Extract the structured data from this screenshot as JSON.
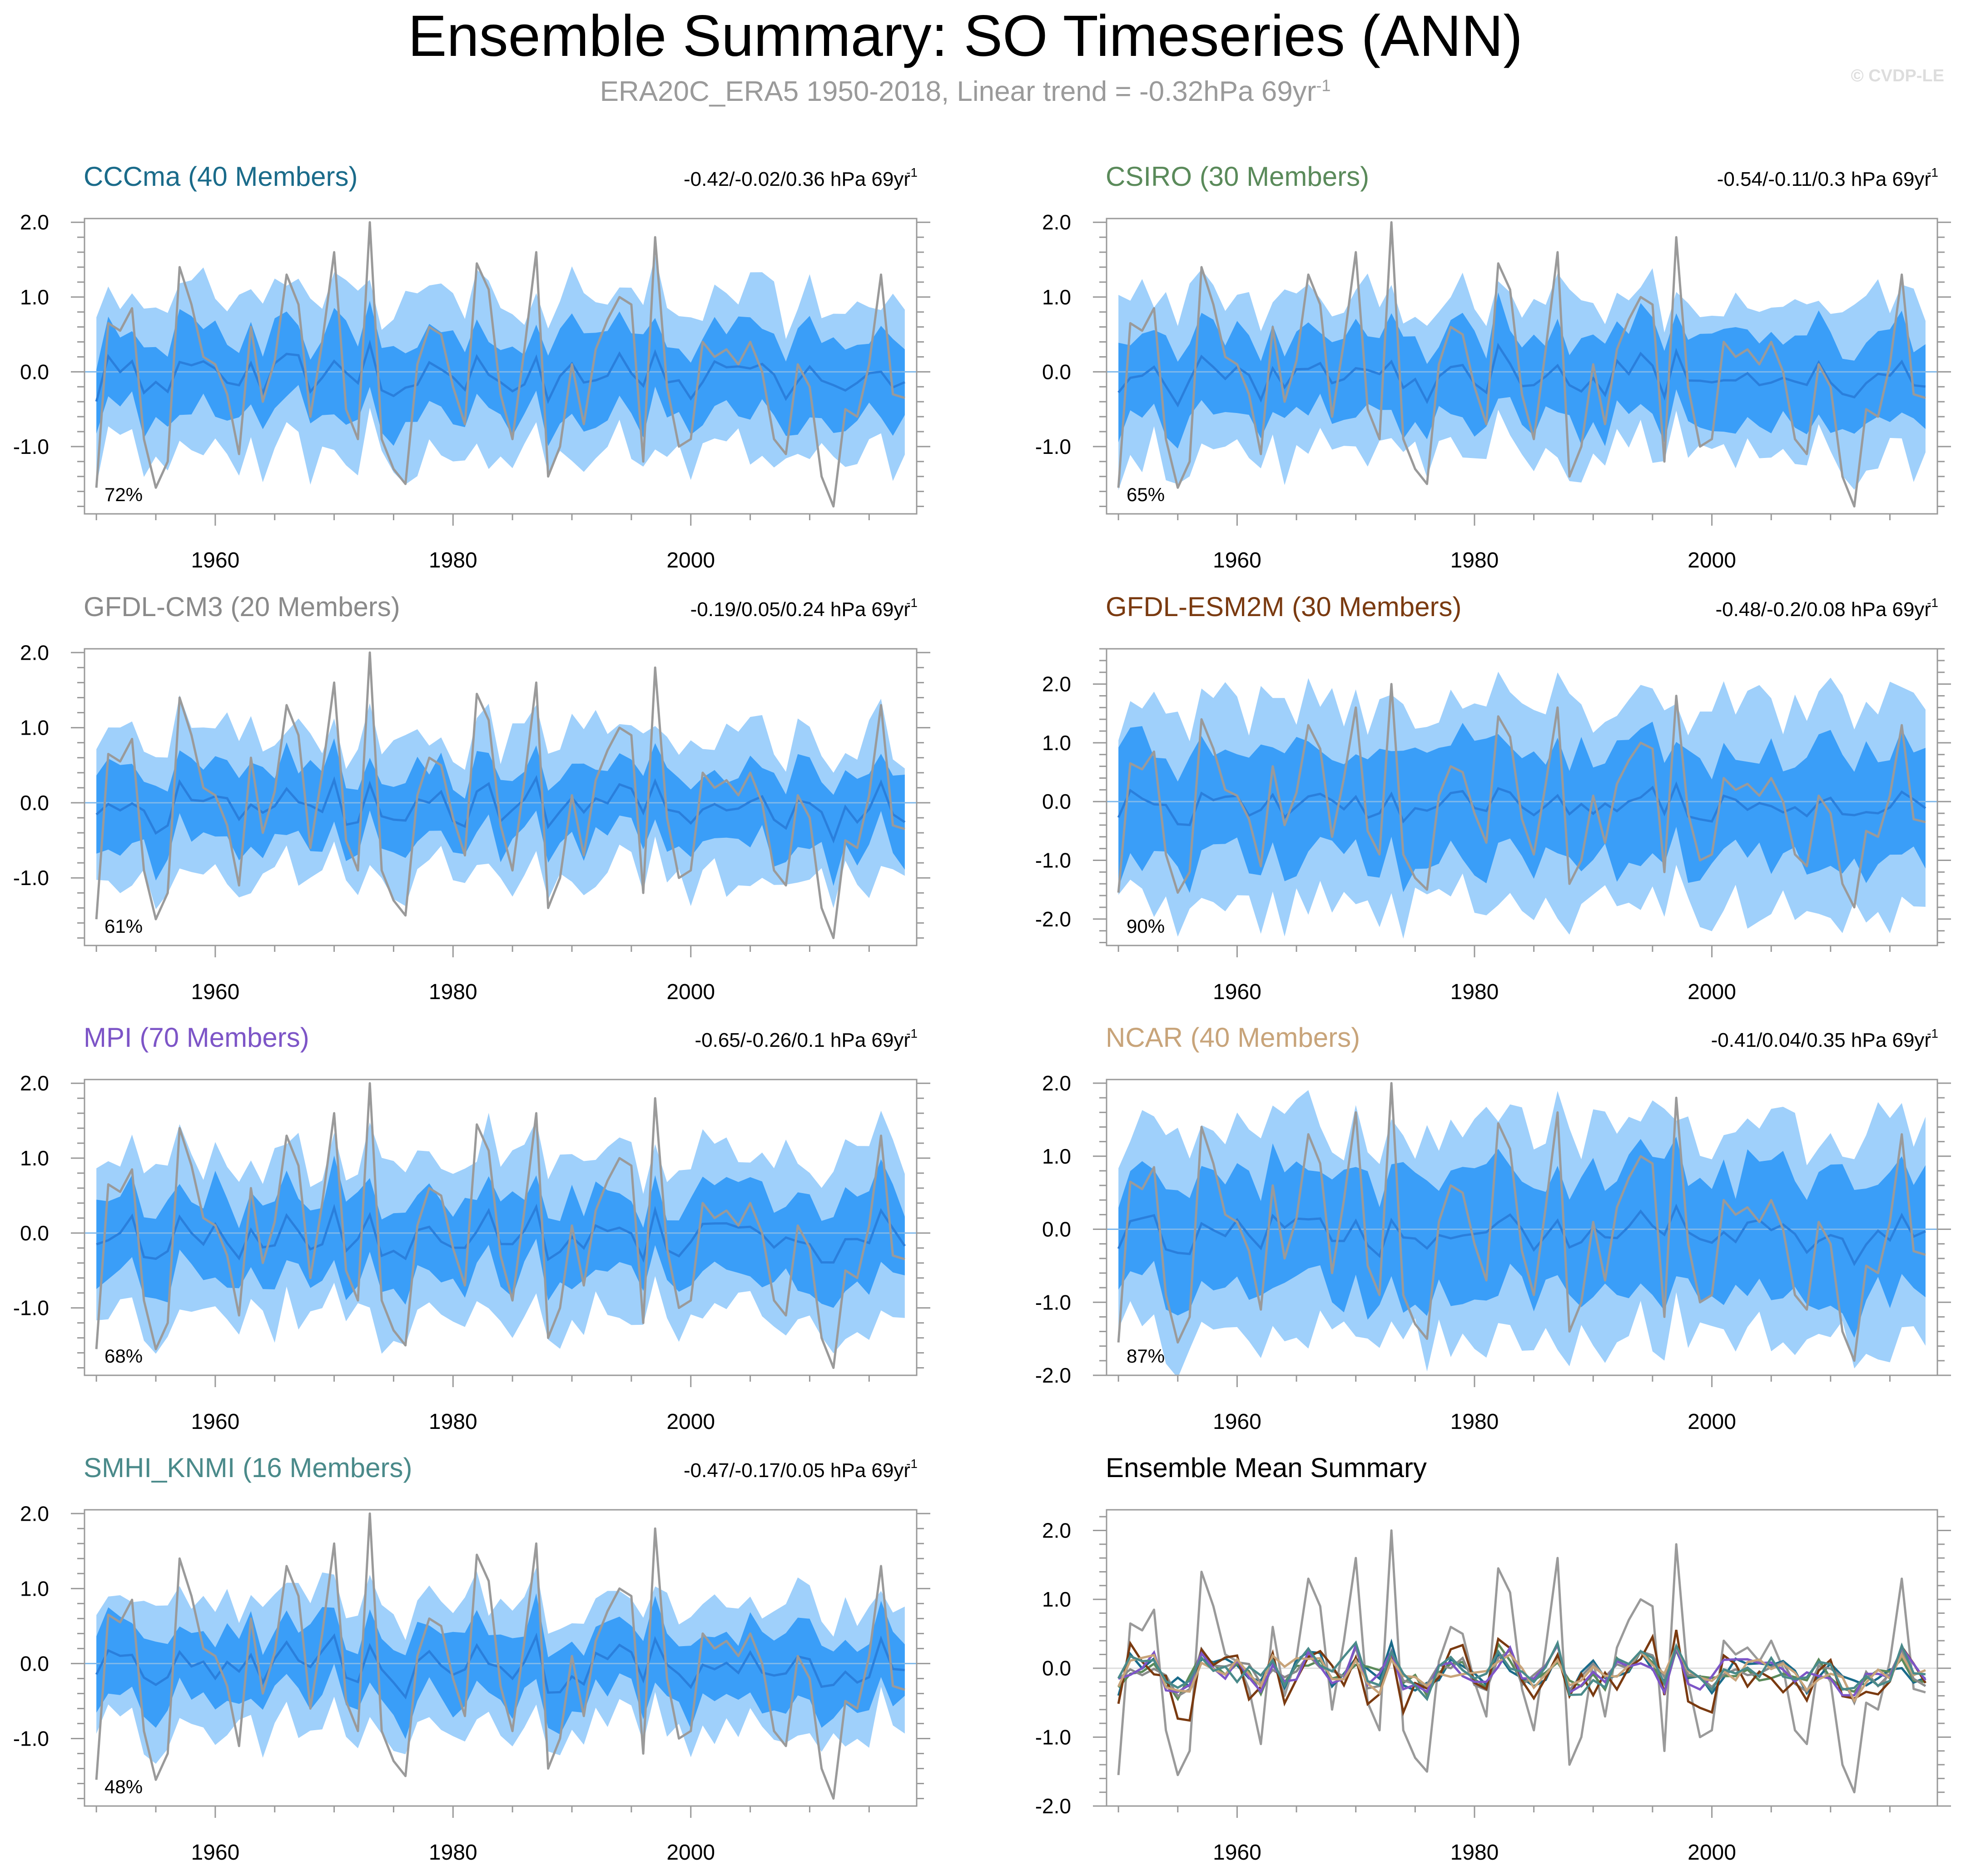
{
  "header": {
    "title": "Ensemble Summary: SO Timeseries (ANN)",
    "subtitle_main": "ERA20C_ERA5 1950-2018, Linear trend = -0.32hPa 69yr",
    "subtitle_sup": "-1",
    "watermark": "© CVDP-LE"
  },
  "colors": {
    "band_outer": "#9fd0fb",
    "band_inner": "#3a9ef8",
    "ensemble_mean": "#2a7fdc",
    "observations": "#9a9a9a",
    "axis": "#9a9a9a"
  },
  "chart_data": [
    {
      "type": "line",
      "id": "CCCma",
      "title": "CCCma (40 Members)",
      "title_color": "#1a6b8a",
      "trend_text": "-0.42/-0.02/0.36 hPa 69yr",
      "trend_sup": "-1",
      "pct_label": "72%",
      "ylim": [
        -1.9,
        2.05
      ],
      "yticks": [
        2.0,
        1.0,
        0.0,
        -1.0
      ],
      "ytick_labels": [
        "2.0",
        "1.0",
        "0.0",
        "-1.0"
      ],
      "xlim": [
        1949,
        2019
      ],
      "xticks": [
        1960,
        1980,
        2000
      ],
      "xtick_labels": [
        "1960",
        "1980",
        "2000"
      ],
      "band_outer": 1.05,
      "band_inner": 0.55,
      "seed": 3
    },
    {
      "type": "line",
      "id": "CSIRO",
      "title": "CSIRO (30 Members)",
      "title_color": "#5a8a5a",
      "trend_text": "-0.54/-0.11/0.3 hPa 69yr",
      "trend_sup": "-1",
      "pct_label": "65%",
      "ylim": [
        -1.9,
        2.05
      ],
      "yticks": [
        2.0,
        1.0,
        0.0,
        -1.0
      ],
      "ytick_labels": [
        "2.0",
        "1.0",
        "0.0",
        "-1.0"
      ],
      "xlim": [
        1949,
        2019
      ],
      "xticks": [
        1960,
        1980,
        2000
      ],
      "xtick_labels": [
        "1960",
        "1980",
        "2000"
      ],
      "band_outer": 1.05,
      "band_inner": 0.55,
      "seed": 7
    },
    {
      "type": "line",
      "id": "GFDL-CM3",
      "title": "GFDL-CM3 (20 Members)",
      "title_color": "#8a8a8a",
      "trend_text": "-0.19/0.05/0.24 hPa 69yr",
      "trend_sup": "-1",
      "pct_label": "61%",
      "ylim": [
        -1.9,
        2.05
      ],
      "yticks": [
        2.0,
        1.0,
        0.0,
        -1.0
      ],
      "ytick_labels": [
        "2.0",
        "1.0",
        "0.0",
        "-1.0"
      ],
      "xlim": [
        1949,
        2019
      ],
      "xticks": [
        1960,
        1980,
        2000
      ],
      "xtick_labels": [
        "1960",
        "1980",
        "2000"
      ],
      "band_outer": 0.95,
      "band_inner": 0.5,
      "seed": 11
    },
    {
      "type": "line",
      "id": "GFDL-ESM2M",
      "title": "GFDL-ESM2M (30 Members)",
      "title_color": "#7a3a10",
      "trend_text": "-0.48/-0.2/0.08 hPa 69yr",
      "trend_sup": "-1",
      "pct_label": "90%",
      "ylim": [
        -2.45,
        2.6
      ],
      "yticks": [
        2.0,
        1.0,
        0.0,
        -1.0,
        -2.0
      ],
      "ytick_labels": [
        "2.0",
        "1.0",
        "0.0",
        "-1.0",
        "-2.0"
      ],
      "xlim": [
        1949,
        2019
      ],
      "xticks": [
        1960,
        1980,
        2000
      ],
      "xtick_labels": [
        "1960",
        "1980",
        "2000"
      ],
      "band_outer": 1.75,
      "band_inner": 0.95,
      "seed": 13
    },
    {
      "type": "line",
      "id": "MPI",
      "title": "MPI (70 Members)",
      "title_color": "#7d55c7",
      "trend_text": "-0.65/-0.26/0.1 hPa 69yr",
      "trend_sup": "-1",
      "pct_label": "68%",
      "ylim": [
        -1.9,
        2.05
      ],
      "yticks": [
        2.0,
        1.0,
        0.0,
        -1.0
      ],
      "ytick_labels": [
        "2.0",
        "1.0",
        "0.0",
        "-1.0"
      ],
      "xlim": [
        1949,
        2019
      ],
      "xticks": [
        1960,
        1980,
        2000
      ],
      "xtick_labels": [
        "1960",
        "1980",
        "2000"
      ],
      "band_outer": 1.1,
      "band_inner": 0.55,
      "seed": 17
    },
    {
      "type": "line",
      "id": "NCAR",
      "title": "NCAR (40 Members)",
      "title_color": "#c8a47a",
      "trend_text": "-0.41/0.04/0.35 hPa 69yr",
      "trend_sup": "-1",
      "pct_label": "87%",
      "ylim": [
        -2.0,
        2.05
      ],
      "yticks": [
        2.0,
        1.0,
        0.0,
        -1.0,
        -2.0
      ],
      "ytick_labels": [
        "2.0",
        "1.0",
        "0.0",
        "-1.0",
        "-2.0"
      ],
      "xlim": [
        1949,
        2019
      ],
      "xticks": [
        1960,
        1980,
        2000
      ],
      "xtick_labels": [
        "1960",
        "1980",
        "2000"
      ],
      "band_outer": 1.45,
      "band_inner": 0.8,
      "seed": 19
    },
    {
      "type": "line",
      "id": "SMHI_KNMI",
      "title": "SMHI_KNMI (16 Members)",
      "title_color": "#4a8a8a",
      "trend_text": "-0.47/-0.17/0.05 hPa 69yr",
      "trend_sup": "-1",
      "pct_label": "48%",
      "ylim": [
        -1.9,
        2.05
      ],
      "yticks": [
        2.0,
        1.0,
        0.0,
        -1.0
      ],
      "ytick_labels": [
        "2.0",
        "1.0",
        "0.0",
        "-1.0"
      ],
      "xlim": [
        1949,
        2019
      ],
      "xticks": [
        1960,
        1980,
        2000
      ],
      "xtick_labels": [
        "1960",
        "1980",
        "2000"
      ],
      "band_outer": 0.85,
      "band_inner": 0.45,
      "seed": 23
    },
    {
      "type": "line",
      "id": "ensemble-mean-summary",
      "title": "Ensemble Mean Summary",
      "title_color": "#000000",
      "trend_text": "",
      "trend_sup": "",
      "pct_label": "",
      "ylim": [
        -2.0,
        2.3
      ],
      "yticks": [
        2.0,
        1.0,
        0.0,
        -1.0,
        -2.0
      ],
      "ytick_labels": [
        "2.0",
        "1.0",
        "0.0",
        "-1.0",
        "-2.0"
      ],
      "xlim": [
        1949,
        2019
      ],
      "xticks": [
        1960,
        1980,
        2000
      ],
      "xtick_labels": [
        "1960",
        "1980",
        "2000"
      ],
      "summary": true
    }
  ],
  "observations": {
    "name": "ERA20C_ERA5",
    "years": [
      1950,
      1951,
      1952,
      1953,
      1954,
      1955,
      1956,
      1957,
      1958,
      1959,
      1960,
      1961,
      1962,
      1963,
      1964,
      1965,
      1966,
      1967,
      1968,
      1969,
      1970,
      1971,
      1972,
      1973,
      1974,
      1975,
      1976,
      1977,
      1978,
      1979,
      1980,
      1981,
      1982,
      1983,
      1984,
      1985,
      1986,
      1987,
      1988,
      1989,
      1990,
      1991,
      1992,
      1993,
      1994,
      1995,
      1996,
      1997,
      1998,
      1999,
      2000,
      2001,
      2002,
      2003,
      2004,
      2005,
      2006,
      2007,
      2008,
      2009,
      2010,
      2011,
      2012,
      2013,
      2014,
      2015,
      2016,
      2017,
      2018
    ],
    "values": [
      -1.55,
      0.65,
      0.55,
      0.85,
      -0.9,
      -1.55,
      -1.2,
      1.4,
      0.9,
      0.2,
      0.1,
      -0.3,
      -1.1,
      0.6,
      -0.4,
      0.15,
      1.3,
      0.9,
      -0.6,
      0.4,
      1.6,
      -0.5,
      -0.9,
      2.0,
      -0.9,
      -1.3,
      -1.5,
      0.1,
      0.6,
      0.5,
      -0.2,
      -0.7,
      1.45,
      1.1,
      -0.3,
      -0.9,
      0.3,
      1.6,
      -1.4,
      -1.0,
      0.1,
      -0.7,
      0.3,
      0.7,
      1.0,
      0.9,
      -1.2,
      1.8,
      -0.2,
      -1.0,
      -0.9,
      0.4,
      0.2,
      0.3,
      0.1,
      0.4,
      0.0,
      -0.9,
      -1.1,
      0.1,
      -0.2,
      -1.4,
      -1.8,
      -0.5,
      -0.6,
      0.1,
      1.3,
      -0.3,
      -0.35
    ]
  },
  "summary_series": [
    {
      "name": "CCCma",
      "color": "#1a6b8a"
    },
    {
      "name": "CSIRO",
      "color": "#5a8a5a"
    },
    {
      "name": "GFDL-CM3",
      "color": "#8a8a8a"
    },
    {
      "name": "GFDL-ESM2M",
      "color": "#7a3a10"
    },
    {
      "name": "MPI",
      "color": "#7d55c7"
    },
    {
      "name": "NCAR",
      "color": "#c8a47a"
    },
    {
      "name": "SMHI_KNMI",
      "color": "#4a8a8a"
    }
  ]
}
